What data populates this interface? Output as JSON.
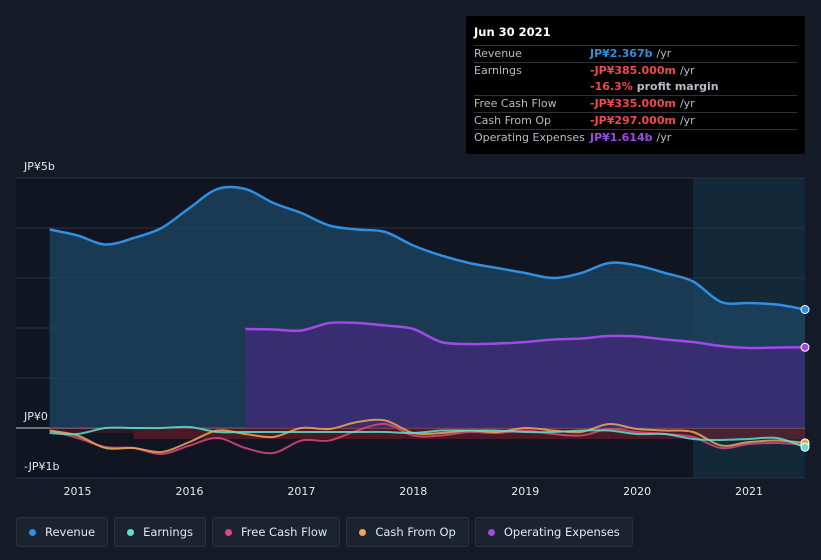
{
  "colors": {
    "revenue": "#2f8fe0",
    "earnings": "#5fe0cf",
    "fcf": "#d9487f",
    "cfo": "#e9aa58",
    "opex": "#a04ae6",
    "negative": "#f04a4a"
  },
  "tooltip": {
    "date": "Jun 30 2021",
    "rows": [
      {
        "label": "Revenue",
        "value": "JP¥2.367b",
        "unit": "/yr",
        "color": "#2f8fe0"
      },
      {
        "label": "Earnings",
        "value": "-JP¥385.000m",
        "unit": "/yr",
        "color": "#f04a4a"
      },
      {
        "label": "",
        "value": "-16.3%",
        "unit": "profit margin",
        "color": "#f04a4a"
      },
      {
        "label": "Free Cash Flow",
        "value": "-JP¥335.000m",
        "unit": "/yr",
        "color": "#f04a4a"
      },
      {
        "label": "Cash From Op",
        "value": "-JP¥297.000m",
        "unit": "/yr",
        "color": "#f04a4a"
      },
      {
        "label": "Operating Expenses",
        "value": "JP¥1.614b",
        "unit": "/yr",
        "color": "#a04ae6"
      }
    ]
  },
  "legend": [
    {
      "label": "Revenue",
      "color": "#2f8fe0"
    },
    {
      "label": "Earnings",
      "color": "#5fe0cf"
    },
    {
      "label": "Free Cash Flow",
      "color": "#d9487f"
    },
    {
      "label": "Cash From Op",
      "color": "#e9aa58"
    },
    {
      "label": "Operating Expenses",
      "color": "#a04ae6"
    }
  ],
  "chart_data": {
    "type": "area",
    "yunit": "JP¥ billions",
    "ylim": [
      -1,
      5
    ],
    "ytick_labels": [
      {
        "value": 5,
        "label": "JP¥5b"
      },
      {
        "value": 0,
        "label": "JP¥0"
      },
      {
        "value": -1,
        "label": "-JP¥1b"
      }
    ],
    "xlim": [
      2014.45,
      2021.5
    ],
    "xticks": [
      2015,
      2016,
      2017,
      2018,
      2019,
      2020,
      2021
    ],
    "xtick_labels": [
      "2015",
      "2016",
      "2017",
      "2018",
      "2019",
      "2020",
      "2021"
    ],
    "highlight_from": 2020.5,
    "series": [
      {
        "name": "Revenue",
        "key": "revenue",
        "fill": true,
        "x": [
          2014.75,
          2015.0,
          2015.25,
          2015.5,
          2015.75,
          2016.0,
          2016.25,
          2016.5,
          2016.75,
          2017.0,
          2017.25,
          2017.5,
          2017.75,
          2018.0,
          2018.25,
          2018.5,
          2018.75,
          2019.0,
          2019.25,
          2019.5,
          2019.75,
          2020.0,
          2020.25,
          2020.5,
          2020.75,
          2021.0,
          2021.25,
          2021.5
        ],
        "values": [
          3.97,
          3.85,
          3.67,
          3.8,
          4.0,
          4.4,
          4.78,
          4.78,
          4.5,
          4.3,
          4.05,
          3.97,
          3.92,
          3.65,
          3.45,
          3.3,
          3.2,
          3.1,
          3.0,
          3.1,
          3.3,
          3.25,
          3.1,
          2.93,
          2.52,
          2.5,
          2.47,
          2.37
        ]
      },
      {
        "name": "Operating Expenses",
        "key": "opex",
        "fill": true,
        "x": [
          2016.5,
          2016.75,
          2017.0,
          2017.25,
          2017.5,
          2017.75,
          2018.0,
          2018.25,
          2018.5,
          2018.75,
          2019.0,
          2019.25,
          2019.5,
          2019.75,
          2020.0,
          2020.25,
          2020.5,
          2020.75,
          2021.0,
          2021.25,
          2021.5
        ],
        "values": [
          1.98,
          1.97,
          1.95,
          2.1,
          2.1,
          2.05,
          1.98,
          1.72,
          1.68,
          1.69,
          1.72,
          1.77,
          1.79,
          1.84,
          1.83,
          1.77,
          1.72,
          1.64,
          1.6,
          1.61,
          1.614
        ]
      },
      {
        "name": "Free Cash Flow",
        "key": "fcf",
        "fill": false,
        "x": [
          2014.75,
          2015.0,
          2015.25,
          2015.5,
          2015.75,
          2016.0,
          2016.25,
          2016.5,
          2016.75,
          2017.0,
          2017.25,
          2017.5,
          2017.75,
          2018.0,
          2018.25,
          2018.5,
          2018.75,
          2019.0,
          2019.25,
          2019.5,
          2019.75,
          2020.0,
          2020.25,
          2020.5,
          2020.75,
          2021.0,
          2021.25,
          2021.5
        ],
        "values": [
          -0.05,
          -0.2,
          -0.38,
          -0.4,
          -0.52,
          -0.35,
          -0.2,
          -0.4,
          -0.5,
          -0.25,
          -0.25,
          -0.05,
          0.08,
          -0.15,
          -0.15,
          -0.08,
          -0.1,
          -0.05,
          -0.12,
          -0.15,
          -0.02,
          -0.08,
          -0.12,
          -0.18,
          -0.4,
          -0.32,
          -0.3,
          -0.335
        ]
      },
      {
        "name": "Cash From Op",
        "key": "cfo",
        "fill": false,
        "x": [
          2014.75,
          2015.0,
          2015.25,
          2015.5,
          2015.75,
          2016.0,
          2016.25,
          2016.5,
          2016.75,
          2017.0,
          2017.25,
          2017.5,
          2017.75,
          2018.0,
          2018.25,
          2018.5,
          2018.75,
          2019.0,
          2019.25,
          2019.5,
          2019.75,
          2020.0,
          2020.25,
          2020.5,
          2020.75,
          2021.0,
          2021.25,
          2021.5
        ],
        "values": [
          -0.05,
          -0.15,
          -0.4,
          -0.4,
          -0.48,
          -0.28,
          -0.05,
          -0.12,
          -0.18,
          0.0,
          -0.02,
          0.12,
          0.15,
          -0.1,
          -0.1,
          -0.05,
          -0.08,
          0.0,
          -0.05,
          -0.08,
          0.08,
          -0.02,
          -0.05,
          -0.08,
          -0.35,
          -0.28,
          -0.25,
          -0.297
        ]
      },
      {
        "name": "Earnings",
        "key": "earnings",
        "fill": false,
        "x": [
          2014.75,
          2015.0,
          2015.25,
          2015.5,
          2015.75,
          2016.0,
          2016.25,
          2016.5,
          2016.75,
          2017.0,
          2017.25,
          2017.5,
          2017.75,
          2018.0,
          2018.25,
          2018.5,
          2018.75,
          2019.0,
          2019.25,
          2019.5,
          2019.75,
          2020.0,
          2020.25,
          2020.5,
          2020.75,
          2021.0,
          2021.25,
          2021.5
        ],
        "values": [
          -0.1,
          -0.12,
          0.0,
          0.0,
          0.0,
          0.02,
          -0.08,
          -0.08,
          -0.08,
          -0.08,
          -0.08,
          -0.08,
          -0.08,
          -0.1,
          -0.05,
          -0.05,
          -0.05,
          -0.08,
          -0.08,
          -0.05,
          -0.05,
          -0.12,
          -0.12,
          -0.22,
          -0.24,
          -0.22,
          -0.2,
          -0.385
        ]
      }
    ]
  }
}
